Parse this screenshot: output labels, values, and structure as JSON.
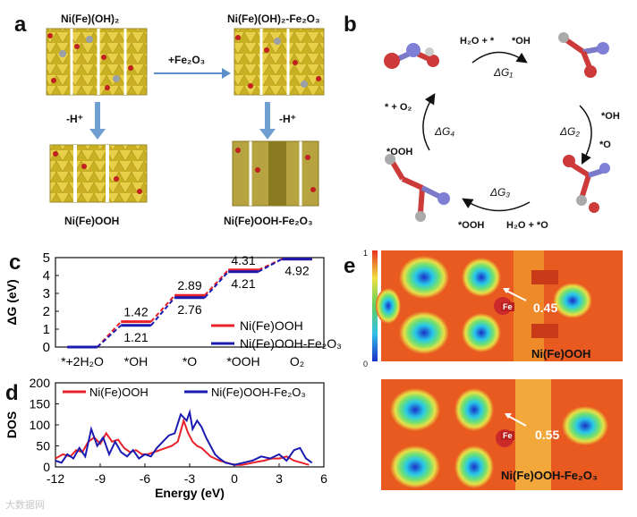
{
  "panels": {
    "a": "a",
    "b": "b",
    "c": "c",
    "d": "d",
    "e": "e"
  },
  "panel_a": {
    "top_left": "Ni(Fe)(OH)₂",
    "top_right": "Ni(Fe)(OH)₂-Fe₂O₃",
    "arrow_add": "+Fe₂O₃",
    "dehydro_left": "-H⁺",
    "dehydro_right": "-H⁺",
    "bottom_left": "Ni(Fe)OOH",
    "bottom_right": "Ni(Fe)OOH-Fe₂O₃"
  },
  "panel_b": {
    "step1_in": "H₂O + *",
    "step1_out": "*OH",
    "dG1": "ΔG₁",
    "step2_in": "*OH",
    "step2_out": "*O",
    "dG2": "ΔG₂",
    "step3_in": "H₂O + *O",
    "step3_out": "*OOH",
    "dG3": "ΔG₃",
    "step4_in": "*OOH",
    "step4_out": "* + O₂",
    "dG4": "ΔG₄"
  },
  "chart_data": [
    {
      "type": "line",
      "ylabel": "ΔG (eV)",
      "ylim": [
        0,
        5
      ],
      "yticks": [
        "0",
        "1",
        "2",
        "3",
        "4",
        "5"
      ],
      "categories": [
        "*+2H₂O",
        "*OH",
        "*O",
        "*OOH",
        "O₂"
      ],
      "series": [
        {
          "name": "Ni(Fe)OOH",
          "color": "#e8202a",
          "values": [
            0,
            1.42,
            2.89,
            4.31,
            4.92
          ]
        },
        {
          "name": "Ni(Fe)OOH-Fe₂O₃",
          "color": "#1a1ab0",
          "values": [
            0,
            1.21,
            2.76,
            4.21,
            4.92
          ]
        }
      ],
      "annotations": [
        "1.42",
        "1.21",
        "2.89",
        "2.76",
        "4.31",
        "4.21",
        "4.92"
      ]
    },
    {
      "type": "line",
      "xlabel": "Energy (eV)",
      "ylabel": "DOS",
      "xlim": [
        -12,
        6
      ],
      "ylim": [
        0,
        200
      ],
      "xticks": [
        "-12",
        "-9",
        "-6",
        "-3",
        "0",
        "3",
        "6"
      ],
      "yticks": [
        "0",
        "50",
        "100",
        "150",
        "200"
      ],
      "series": [
        {
          "name": "Ni(Fe)OOH",
          "color": "#e8202a",
          "x": [
            -12,
            -11.5,
            -11,
            -10.6,
            -10.2,
            -9.8,
            -9.4,
            -9,
            -8.6,
            -8.2,
            -7.8,
            -7.4,
            -7,
            -6.6,
            -6.2,
            -5.8,
            -5.4,
            -5,
            -4.6,
            -4.2,
            -3.8,
            -3.4,
            -3.1,
            -2.8,
            -2.5,
            -2.2,
            -1.9,
            -1.6,
            -1.3,
            -1,
            -0.5,
            0,
            0.5,
            1,
            1.5,
            2,
            2.5,
            3,
            3.5,
            4,
            4.5,
            5
          ],
          "y": [
            20,
            30,
            25,
            40,
            35,
            60,
            70,
            55,
            80,
            60,
            65,
            45,
            35,
            40,
            30,
            30,
            35,
            40,
            45,
            50,
            60,
            110,
            80,
            60,
            50,
            45,
            35,
            25,
            20,
            15,
            10,
            5,
            5,
            8,
            12,
            15,
            20,
            20,
            25,
            15,
            10,
            5
          ]
        },
        {
          "name": "Ni(Fe)OOH-Fe₂O₃",
          "color": "#1a1ab0",
          "x": [
            -12,
            -11.6,
            -11.2,
            -10.8,
            -10.4,
            -10,
            -9.6,
            -9.2,
            -8.8,
            -8.4,
            -8,
            -7.6,
            -7.2,
            -6.8,
            -6.4,
            -6,
            -5.6,
            -5.2,
            -4.8,
            -4.4,
            -4,
            -3.6,
            -3.2,
            -3,
            -2.8,
            -2.5,
            -2.2,
            -1.9,
            -1.6,
            -1.3,
            -1,
            -0.6,
            0,
            0.6,
            1.2,
            1.8,
            2.4,
            3,
            3.5,
            4,
            4.4,
            4.8,
            5.2
          ],
          "y": [
            15,
            10,
            30,
            20,
            45,
            25,
            90,
            50,
            70,
            30,
            60,
            35,
            25,
            40,
            20,
            30,
            25,
            45,
            60,
            75,
            80,
            125,
            110,
            130,
            90,
            110,
            95,
            70,
            50,
            30,
            20,
            10,
            5,
            10,
            15,
            25,
            20,
            30,
            15,
            40,
            45,
            20,
            10
          ]
        }
      ],
      "legend": [
        "Ni(Fe)OOH",
        "Ni(Fe)OOH-Fe₂O₃"
      ]
    }
  ],
  "panel_e": {
    "colorbar_max": "1",
    "colorbar_min": "0",
    "top_title": "Ni(Fe)OOH",
    "bottom_title": "Ni(Fe)OOH-Fe₂O₃",
    "top_fe": "Fe",
    "bottom_fe": "Fe",
    "top_value": "0.45",
    "bottom_value": "0.55"
  },
  "watermark": "大数据网"
}
